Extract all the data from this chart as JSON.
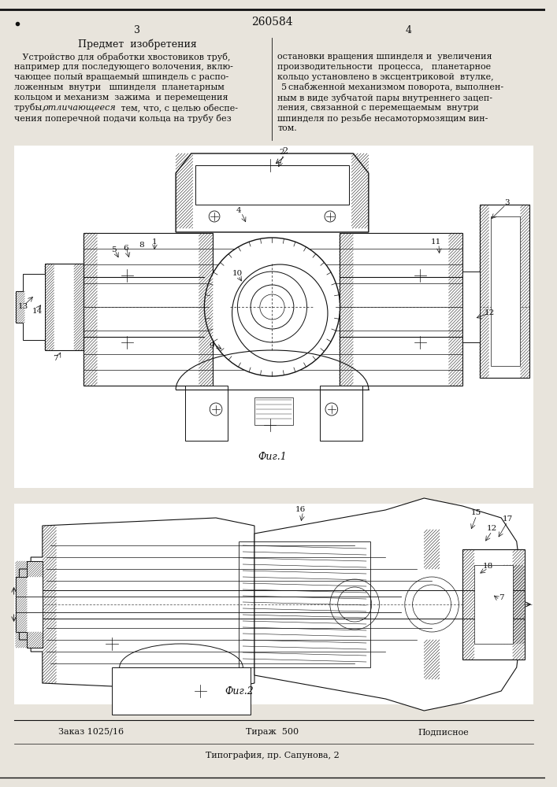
{
  "title_number": "260584",
  "page_col_left": "3",
  "page_col_right": "4",
  "section_title": "Предмет  изобретения",
  "left_text_lines": [
    "   Устройство для обработки хвостовиков труб,",
    "например для последующего волочения, вклю-",
    "чающее полый вращаемый шпиндель с распо-",
    "ложенным  внутри   шпинделя  планетарным",
    "кольцом и механизм  зажима  и перемещения",
    "трубы, отличающееся тем, что, с целью обеспе-",
    "чения поперечной подачи кольца на трубу без"
  ],
  "right_text_lines": [
    "остановки вращения шпинделя и  увеличения",
    "производительности  процесса,   планетарное",
    "кольцо установлено в эксцентриковой  втулке,",
    "снабженной механизмом поворота, выполнен-",
    "ным в виде зубчатой пары внутреннего зацеп-",
    "ления, связанной с перемещаемым  внутри",
    "шпинделя по резьбе несамотормозящим вин-",
    "том."
  ],
  "right_line5_prefix": "  5 ",
  "fig1_label": "Фиг.1",
  "fig2_label": "Фиг.2",
  "footer_left": "Заказ 1025/16",
  "footer_center": "Тираж  500",
  "footer_right": "Подписное",
  "footer_bottom": "Типография, пр. Сапунова, 2",
  "bg_color": "#e8e4dc",
  "paper_color": "#f0ece4",
  "text_color": "#111111",
  "line_color": "#111111",
  "hatch_color": "#222222",
  "border_color": "#444444"
}
